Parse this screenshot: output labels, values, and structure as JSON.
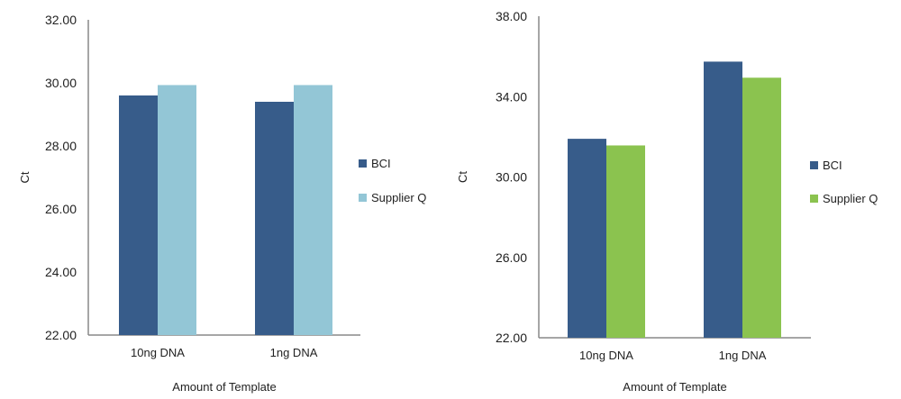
{
  "chart_data": [
    {
      "type": "bar",
      "title": "",
      "xlabel": "Amount of Template",
      "ylabel": "Ct",
      "categories": [
        "10ng DNA",
        "1ng DNA"
      ],
      "ylim": [
        22,
        32
      ],
      "yticks": [
        "22.00",
        "24.00",
        "26.00",
        "28.00",
        "30.00",
        "32.00"
      ],
      "grid": false,
      "legend": "right",
      "series": [
        {
          "name": "BCI",
          "color": "#375c8a",
          "values": [
            29.6,
            29.4
          ]
        },
        {
          "name": "Supplier Q",
          "color": "#93c6d6",
          "values": [
            29.93,
            29.93
          ]
        }
      ]
    },
    {
      "type": "bar",
      "title": "",
      "xlabel": "Amount of Template",
      "ylabel": "Ct",
      "categories": [
        "10ng DNA",
        "1ng DNA"
      ],
      "ylim": [
        22,
        38
      ],
      "yticks": [
        "22.00",
        "26.00",
        "30.00",
        "34.00",
        "38.00"
      ],
      "grid": false,
      "legend": "right",
      "series": [
        {
          "name": "BCI",
          "color": "#375c8a",
          "values": [
            31.9,
            35.74
          ]
        },
        {
          "name": "Supplier Q",
          "color": "#8bc34f",
          "values": [
            31.57,
            34.94
          ]
        }
      ]
    }
  ]
}
